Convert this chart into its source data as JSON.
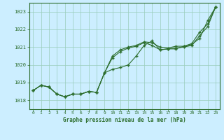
{
  "title": "Graphe pression niveau de la mer (hPa)",
  "background_color": "#cceeff",
  "grid_color": "#99ccbb",
  "line_color": "#2d6e2d",
  "xlim": [
    -0.5,
    23.5
  ],
  "ylim": [
    1017.5,
    1023.5
  ],
  "yticks": [
    1018,
    1019,
    1020,
    1021,
    1022,
    1023
  ],
  "xticks": [
    0,
    1,
    2,
    3,
    4,
    5,
    6,
    7,
    8,
    9,
    10,
    11,
    12,
    13,
    14,
    15,
    16,
    17,
    18,
    19,
    20,
    21,
    22,
    23
  ],
  "series_a": [
    1018.55,
    1018.85,
    1018.75,
    1018.35,
    1018.2,
    1018.35,
    1018.35,
    1018.5,
    1018.45,
    1019.55,
    1019.75,
    1019.85,
    1020.0,
    1020.5,
    1021.1,
    1021.35,
    1020.85,
    1020.9,
    1020.9,
    1021.05,
    1021.15,
    1021.5,
    1022.5,
    1023.25
  ],
  "series_b": [
    1018.55,
    1018.85,
    1018.75,
    1018.35,
    1018.2,
    1018.35,
    1018.35,
    1018.5,
    1018.45,
    1019.55,
    1020.5,
    1020.85,
    1021.0,
    1021.1,
    1021.3,
    1021.25,
    1021.0,
    1020.95,
    1021.05,
    1021.05,
    1021.2,
    1021.85,
    1022.3,
    1023.25
  ],
  "series_c": [
    1018.55,
    1018.85,
    1018.75,
    1018.35,
    1018.2,
    1018.35,
    1018.35,
    1018.5,
    1018.45,
    1019.55,
    1020.4,
    1020.75,
    1020.95,
    1021.05,
    1021.25,
    1021.1,
    1020.85,
    1020.9,
    1020.95,
    1021.0,
    1021.1,
    1021.65,
    1022.15,
    1023.25
  ]
}
